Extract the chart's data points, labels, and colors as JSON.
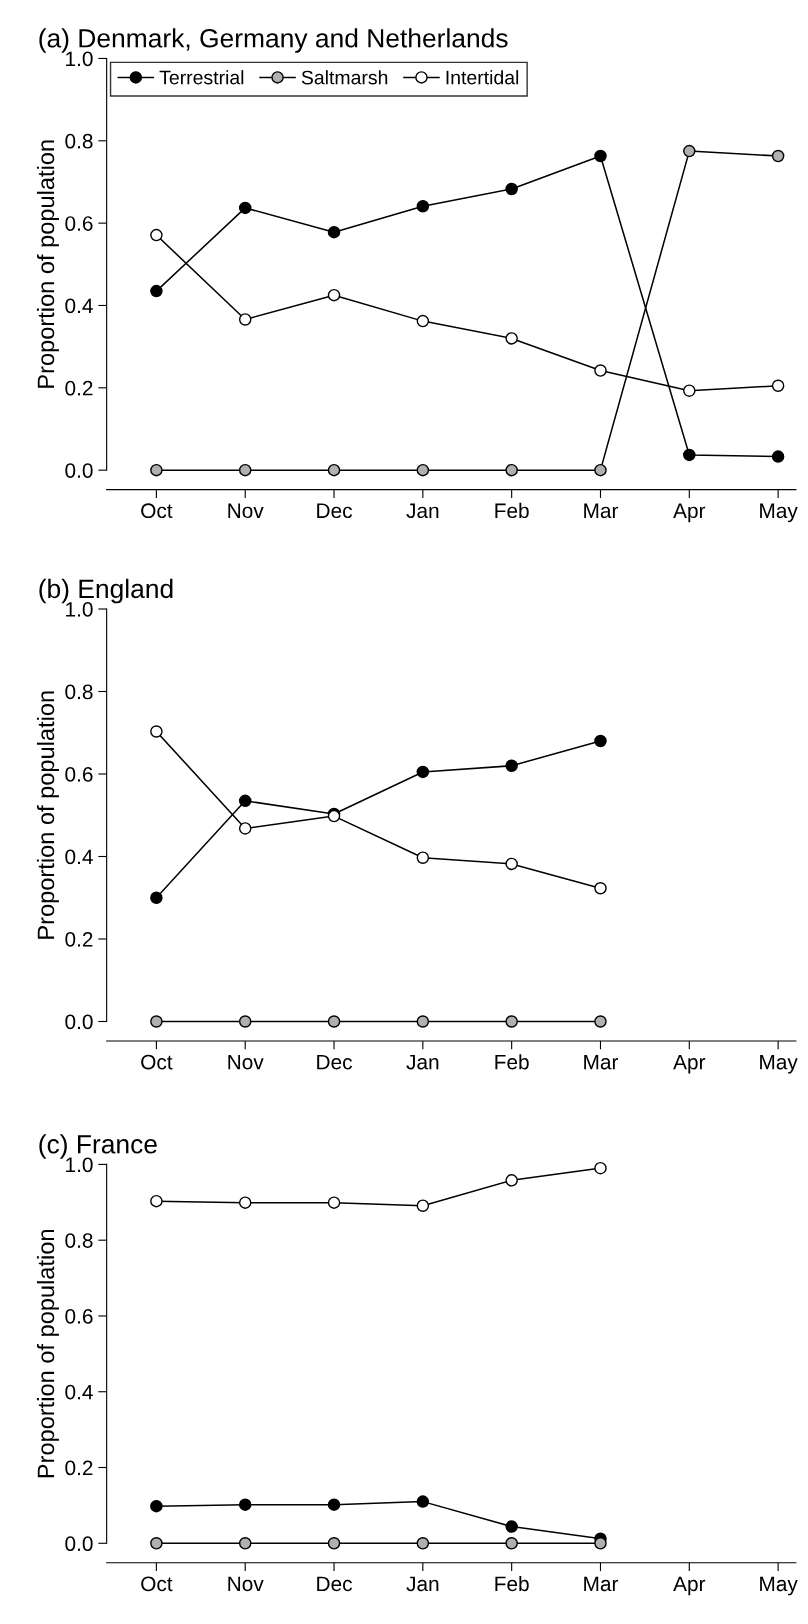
{
  "chart_data": [
    {
      "type": "line",
      "title": "(a) Denmark, Germany and Netherlands",
      "ylabel": "Proportion of population",
      "categories": [
        "Oct",
        "Nov",
        "Dec",
        "Jan",
        "Feb",
        "Mar",
        "Apr",
        "May"
      ],
      "ylim": [
        0,
        1
      ],
      "yticks": [
        {
          "value": 0,
          "label": "0.0"
        },
        {
          "value": 0.2,
          "label": "0.2"
        },
        {
          "value": 0.4,
          "label": "0.4"
        },
        {
          "value": 0.6,
          "label": "0.6"
        },
        {
          "value": 0.8,
          "label": "0.8"
        },
        {
          "value": 1,
          "label": "1.0"
        }
      ],
      "marker": "circle",
      "line_style": "solid",
      "grid": false,
      "legend": "top left",
      "series": [
        {
          "name": "Terrestrial",
          "color": "#000000",
          "values": [
            0.435,
            0.637,
            0.578,
            0.641,
            0.683,
            0.763,
            0.037,
            0.033
          ]
        },
        {
          "name": "Saltmarsh",
          "color": "#b0b0b0",
          "values": [
            0,
            0,
            0,
            0,
            0,
            0,
            0.775,
            0.763
          ]
        },
        {
          "name": "Intertidal",
          "color": "#ffffff",
          "values": [
            0.571,
            0.366,
            0.425,
            0.362,
            0.32,
            0.242,
            0.193,
            0.205
          ]
        }
      ]
    },
    {
      "type": "line",
      "title": "(b) England",
      "ylabel": "Proportion of population",
      "categories": [
        "Oct",
        "Nov",
        "Dec",
        "Jan",
        "Feb",
        "Mar",
        "Apr",
        "May"
      ],
      "ylim": [
        0,
        1
      ],
      "yticks": [
        {
          "value": 0,
          "label": "0.0"
        },
        {
          "value": 0.2,
          "label": "0.2"
        },
        {
          "value": 0.4,
          "label": "0.4"
        },
        {
          "value": 0.6,
          "label": "0.6"
        },
        {
          "value": 0.8,
          "label": "0.8"
        },
        {
          "value": 1,
          "label": "1.0"
        }
      ],
      "marker": "circle",
      "line_style": "solid",
      "grid": false,
      "series": [
        {
          "color": "#000000",
          "values": [
            0.3,
            0.535,
            0.503,
            0.605,
            0.62,
            0.68,
            null,
            null
          ]
        },
        {
          "color": "#b0b0b0",
          "values": [
            0,
            0,
            0,
            0,
            0,
            0,
            null,
            null
          ]
        },
        {
          "color": "#ffffff",
          "values": [
            0.703,
            0.468,
            0.498,
            0.397,
            0.382,
            0.323,
            null,
            null
          ]
        }
      ]
    },
    {
      "type": "line",
      "title": "(c) France",
      "ylabel": "Proportion of population",
      "categories": [
        "Oct",
        "Nov",
        "Dec",
        "Jan",
        "Feb",
        "Mar",
        "Apr",
        "May"
      ],
      "ylim": [
        0,
        1
      ],
      "yticks": [
        {
          "value": 0,
          "label": "0.0"
        },
        {
          "value": 0.2,
          "label": "0.2"
        },
        {
          "value": 0.4,
          "label": "0.4"
        },
        {
          "value": 0.6,
          "label": "0.6"
        },
        {
          "value": 0.8,
          "label": "0.8"
        },
        {
          "value": 1,
          "label": "1.0"
        }
      ],
      "marker": "circle",
      "line_style": "solid",
      "grid": false,
      "series": [
        {
          "color": "#000000",
          "values": [
            0.098,
            0.102,
            0.102,
            0.11,
            0.044,
            0.012,
            null,
            null
          ]
        },
        {
          "color": "#b0b0b0",
          "values": [
            0,
            0,
            0,
            0,
            0,
            0,
            null,
            null
          ]
        },
        {
          "color": "#ffffff",
          "values": [
            0.903,
            0.899,
            0.899,
            0.891,
            0.958,
            0.99,
            null,
            null
          ]
        }
      ]
    }
  ]
}
